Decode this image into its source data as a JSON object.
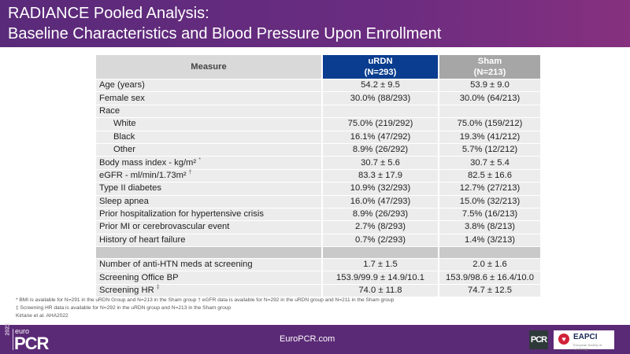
{
  "title": {
    "line1": "RADIANCE Pooled Analysis:",
    "line2": "Baseline Characteristics and Blood Pressure Upon Enrollment"
  },
  "table": {
    "headers": {
      "measure": "Measure",
      "urdn_name": "uRDN",
      "urdn_n": "(N=293)",
      "sham_name": "Sham",
      "sham_n": "(N=213)"
    },
    "rows": [
      {
        "measure": "Age (years)",
        "sup": "",
        "urdn": "54.2 ± 9.5",
        "sham": "53.9 ± 9.0"
      },
      {
        "measure": "Female sex",
        "sup": "",
        "urdn": "30.0% (88/293)",
        "sham": "30.0% (64/213)"
      },
      {
        "measure": "Race",
        "sup": "",
        "urdn": "",
        "sham": ""
      },
      {
        "measure": "White",
        "sup": "",
        "urdn": "75.0% (219/292)",
        "sham": "75.0% (159/212)"
      },
      {
        "measure": "Black",
        "sup": "",
        "urdn": "16.1% (47/292)",
        "sham": "19.3% (41/212)"
      },
      {
        "measure": "Other",
        "sup": "",
        "urdn": "8.9% (26/292)",
        "sham": "5.7% (12/212)"
      },
      {
        "measure": "Body mass index - kg/m²",
        "sup": "*",
        "urdn": "30.7 ± 5.6",
        "sham": "30.7 ± 5.4"
      },
      {
        "measure": "eGFR - ml/min/1.73m²",
        "sup": "†",
        "urdn": "83.3 ± 17.9",
        "sham": "82.5 ± 16.6"
      },
      {
        "measure": "Type II diabetes",
        "sup": "",
        "urdn": "10.9% (32/293)",
        "sham": "12.7% (27/213)"
      },
      {
        "measure": "Sleep apnea",
        "sup": "",
        "urdn": "16.0% (47/293)",
        "sham": "15.0% (32/213)"
      },
      {
        "measure": "Prior hospitalization for hypertensive crisis",
        "sup": "",
        "urdn": "8.9% (26/293)",
        "sham": "7.5% (16/213)"
      },
      {
        "measure": "Prior MI or cerebrovascular event",
        "sup": "",
        "urdn": "2.7% (8/293)",
        "sham": "3.8% (8/213)"
      },
      {
        "measure": "History of heart failure",
        "sup": "",
        "urdn": "0.7% (2/293)",
        "sham": "1.4% (3/213)"
      },
      {
        "measure": "",
        "sup": "",
        "urdn": "",
        "sham": ""
      },
      {
        "measure": "Number of anti-HTN meds at screening",
        "sup": "",
        "urdn": "1.7 ± 1.5",
        "sham": "2.0 ± 1.6"
      },
      {
        "measure": "Screening Office BP",
        "sup": "",
        "urdn": "153.9/99.9 ± 14.9/10.1",
        "sham": "153.9/98.6 ± 16.4/10.0"
      },
      {
        "measure": "Screening HR",
        "sup": "‡",
        "urdn": "74.0 ± 11.8",
        "sham": "74.7 ± 12.5"
      }
    ]
  },
  "footnotes": {
    "line1": "* BMI is available for N=291 in the uRDN Group and N=213 in the Sham group  † eGFR data is available for N=292 in the uRDN group and N=211 in the Sham group",
    "line2": "‡ Screening HR data is available for N=292 in the uRDN group and N=213 in the Sham group",
    "citation": "Kirtane et al. AHA2022"
  },
  "footer": {
    "year": "2023",
    "logo_prefix": "euro",
    "logo_main": "PCR",
    "website": "EuroPCR.com",
    "pcr_badge": "PCR",
    "eapci_label": "EAPCI",
    "eapci_sub": "European Society of Cardiology"
  }
}
